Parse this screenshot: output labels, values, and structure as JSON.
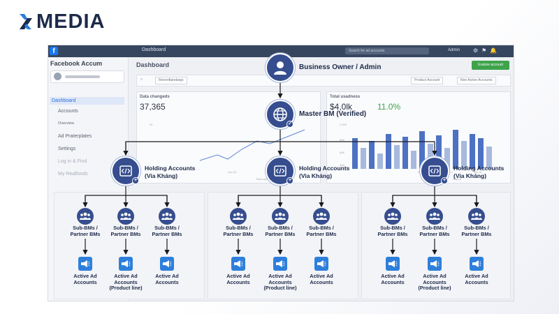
{
  "brand": {
    "name": "MEDIA",
    "accent": "#2e7fdb",
    "dark": "#1d2a4a"
  },
  "dashboard": {
    "topbar_title": "Dashboard",
    "search_placeholder": "Search for ad accounts",
    "admin_label": "Admin",
    "app_title": "Facebook Accum",
    "sidebar": [
      {
        "label": "Dashboard",
        "icon": "dashboard-icon",
        "active": true
      },
      {
        "label": "Accounts",
        "icon": "accounts-icon"
      },
      {
        "label": "Overview",
        "icon": ""
      },
      {
        "label": "Ad Praterplates",
        "icon": "templates-icon"
      },
      {
        "label": "Settings",
        "icon": "gear-icon"
      },
      {
        "label": "Log in & Find",
        "icon": "login-icon",
        "dim": true
      },
      {
        "label": "My Realfonds",
        "icon": "funds-icon",
        "dim": true
      }
    ],
    "page_title": "Dashboard",
    "create_button": "Evalore account",
    "filter_dropdown": "Reonrittandargs",
    "filter_product": "Product Account",
    "filter_status": "Non Active Accounts",
    "card1": {
      "label": "Data changeds",
      "value": "37,365",
      "tick": "2K",
      "legend": "Total addt accounts",
      "x_tick": "Jun 23"
    },
    "card2": {
      "label": "Total usadness",
      "value": "$4,0lk",
      "change": "11.0%",
      "ticks": [
        "1.20K",
        "80K",
        "50K",
        "40K"
      ],
      "legend": "Report",
      "x_ticks": [
        "Apr 1",
        "Jun 3",
        "Jun 31"
      ]
    }
  },
  "diagram": {
    "root": {
      "label": "Business Owner / Admin",
      "icon": "user-icon"
    },
    "master": {
      "label": "Master BM (Verified)",
      "icon": "globe-check-icon"
    },
    "holdings": [
      {
        "label": "Holding Accounts\n(Via Kháng)"
      },
      {
        "label": "Holding Accounts\n(Via Kháng)"
      },
      {
        "label": "Holding Accounts\n(Via Kháng)"
      }
    ],
    "sub_label": "Sub-BMs /\nPartner BMs",
    "ad_labels": [
      "Active Ad\nAccounts",
      "Active Ad\nAccounts\n(Product line)",
      "Active Ad\nAccounts"
    ],
    "colors": {
      "node": "#364e8f",
      "ad": "#2e7fdb",
      "line": "#1a1a1a"
    }
  }
}
